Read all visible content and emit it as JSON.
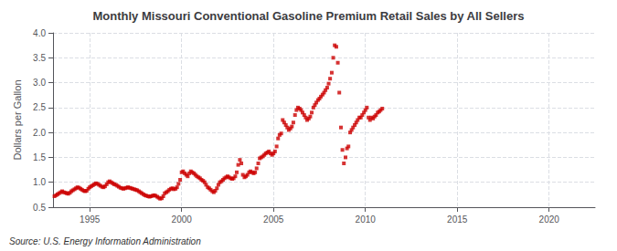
{
  "chart_data": {
    "type": "scatter",
    "title": "Monthly Missouri Conventional Gasoline Premium Retail Sales by All Sellers",
    "ylabel": "Dollars per Gallon",
    "annotations": [
      "Source: U.S. Energy Information Administration"
    ],
    "xlim": [
      1993.0,
      2022.5
    ],
    "xticks": [
      1995,
      2000,
      2005,
      2010,
      2015,
      2020
    ],
    "ylim": [
      0.5,
      4.0
    ],
    "yticks": [
      0.5,
      {
        "value": 1.0,
        "label": "1.0"
      },
      1.5,
      {
        "value": 2.0,
        "label": "2.0"
      },
      2.5,
      {
        "value": 3.0,
        "label": "3.0"
      },
      3.5,
      {
        "value": 4.0,
        "label": "4.0"
      }
    ],
    "grid": true,
    "color": "#cc0000",
    "marker": "square",
    "line_style": "none",
    "x": [
      1993.08,
      1993.17,
      1993.25,
      1993.33,
      1993.42,
      1993.5,
      1993.58,
      1993.67,
      1993.75,
      1993.83,
      1993.92,
      1994.0,
      1994.08,
      1994.17,
      1994.25,
      1994.33,
      1994.42,
      1994.5,
      1994.58,
      1994.67,
      1994.75,
      1994.83,
      1994.92,
      1995.0,
      1995.08,
      1995.17,
      1995.25,
      1995.33,
      1995.42,
      1995.5,
      1995.58,
      1995.67,
      1995.75,
      1995.83,
      1995.92,
      1996.0,
      1996.08,
      1996.17,
      1996.25,
      1996.33,
      1996.42,
      1996.5,
      1996.58,
      1996.67,
      1996.75,
      1996.83,
      1996.92,
      1997.0,
      1997.08,
      1997.17,
      1997.25,
      1997.33,
      1997.42,
      1997.5,
      1997.58,
      1997.67,
      1997.75,
      1997.83,
      1997.92,
      1998.0,
      1998.08,
      1998.17,
      1998.25,
      1998.33,
      1998.42,
      1998.5,
      1998.58,
      1998.67,
      1998.75,
      1998.83,
      1998.92,
      1999.0,
      1999.08,
      1999.17,
      1999.25,
      1999.33,
      1999.42,
      1999.5,
      1999.58,
      1999.67,
      1999.75,
      1999.83,
      1999.92,
      2000.0,
      2000.08,
      2000.17,
      2000.25,
      2000.33,
      2000.42,
      2000.5,
      2000.58,
      2000.67,
      2000.75,
      2000.83,
      2000.92,
      2001.0,
      2001.08,
      2001.17,
      2001.25,
      2001.33,
      2001.42,
      2001.5,
      2001.58,
      2001.67,
      2001.75,
      2001.83,
      2001.92,
      2002.0,
      2002.08,
      2002.17,
      2002.25,
      2002.33,
      2002.42,
      2002.5,
      2002.58,
      2002.67,
      2002.75,
      2002.83,
      2002.92,
      2003.0,
      2003.08,
      2003.17,
      2003.25,
      2003.33,
      2003.42,
      2003.5,
      2003.58,
      2003.67,
      2003.75,
      2003.83,
      2003.92,
      2004.0,
      2004.08,
      2004.17,
      2004.25,
      2004.33,
      2004.42,
      2004.5,
      2004.58,
      2004.67,
      2004.75,
      2004.83,
      2004.92,
      2005.0,
      2005.08,
      2005.17,
      2005.25,
      2005.33,
      2005.42,
      2005.5,
      2005.58,
      2005.67,
      2005.75,
      2005.83,
      2005.92,
      2006.0,
      2006.08,
      2006.17,
      2006.25,
      2006.33,
      2006.42,
      2006.5,
      2006.58,
      2006.67,
      2006.75,
      2006.83,
      2006.92,
      2007.0,
      2007.08,
      2007.17,
      2007.25,
      2007.33,
      2007.42,
      2007.5,
      2007.58,
      2007.67,
      2007.75,
      2007.83,
      2007.92,
      2008.0,
      2008.08,
      2008.17,
      2008.25,
      2008.33,
      2008.42,
      2008.5,
      2008.58,
      2008.67,
      2008.75,
      2008.83,
      2008.92,
      2009.0,
      2009.08,
      2009.17,
      2009.25,
      2009.33,
      2009.42,
      2009.5,
      2009.58,
      2009.67,
      2009.75,
      2009.83,
      2009.92,
      2010.0,
      2010.08,
      2010.17,
      2010.25,
      2010.33,
      2010.42,
      2010.5,
      2010.58,
      2010.67,
      2010.75,
      2010.83,
      2010.92
    ],
    "values": [
      0.72,
      0.74,
      0.76,
      0.78,
      0.8,
      0.82,
      0.8,
      0.79,
      0.78,
      0.77,
      0.79,
      0.82,
      0.84,
      0.86,
      0.88,
      0.9,
      0.89,
      0.87,
      0.85,
      0.83,
      0.82,
      0.83,
      0.87,
      0.9,
      0.92,
      0.94,
      0.96,
      0.98,
      0.97,
      0.95,
      0.93,
      0.91,
      0.9,
      0.92,
      0.96,
      1.0,
      1.02,
      1.0,
      0.98,
      0.96,
      0.95,
      0.93,
      0.91,
      0.89,
      0.88,
      0.87,
      0.88,
      0.89,
      0.9,
      0.89,
      0.88,
      0.87,
      0.86,
      0.85,
      0.84,
      0.82,
      0.8,
      0.78,
      0.76,
      0.74,
      0.73,
      0.72,
      0.71,
      0.72,
      0.73,
      0.74,
      0.73,
      0.71,
      0.69,
      0.67,
      0.68,
      0.72,
      0.78,
      0.8,
      0.82,
      0.85,
      0.87,
      0.88,
      0.86,
      0.87,
      0.9,
      0.97,
      1.05,
      1.2,
      1.22,
      1.18,
      1.15,
      1.12,
      1.18,
      1.22,
      1.2,
      1.18,
      1.15,
      1.12,
      1.1,
      1.08,
      1.05,
      1.03,
      1.0,
      0.95,
      0.9,
      0.88,
      0.85,
      0.82,
      0.8,
      0.83,
      0.88,
      0.95,
      1.0,
      1.02,
      1.05,
      1.08,
      1.1,
      1.12,
      1.1,
      1.08,
      1.07,
      1.08,
      1.12,
      1.2,
      1.35,
      1.45,
      1.38,
      1.15,
      1.1,
      1.12,
      1.15,
      1.2,
      1.22,
      1.2,
      1.18,
      1.2,
      1.28,
      1.38,
      1.48,
      1.5,
      1.52,
      1.55,
      1.58,
      1.6,
      1.62,
      1.58,
      1.55,
      1.58,
      1.62,
      1.72,
      1.88,
      1.95,
      1.98,
      2.25,
      2.2,
      2.15,
      2.1,
      2.05,
      2.08,
      2.12,
      2.2,
      2.35,
      2.45,
      2.5,
      2.48,
      2.45,
      2.4,
      2.35,
      2.3,
      2.25,
      2.28,
      2.32,
      2.4,
      2.5,
      2.55,
      2.6,
      2.65,
      2.68,
      2.72,
      2.76,
      2.8,
      2.85,
      2.9,
      2.98,
      3.08,
      3.2,
      3.5,
      3.75,
      3.72,
      3.4,
      2.8,
      2.1,
      1.65,
      1.38,
      1.5,
      1.68,
      1.72,
      2.0,
      2.05,
      2.1,
      2.15,
      2.2,
      2.25,
      2.3,
      2.3,
      2.35,
      2.4,
      2.45,
      2.5,
      2.3,
      2.25,
      2.3,
      2.28,
      2.32,
      2.35,
      2.4,
      2.42,
      2.45,
      2.48
    ]
  }
}
